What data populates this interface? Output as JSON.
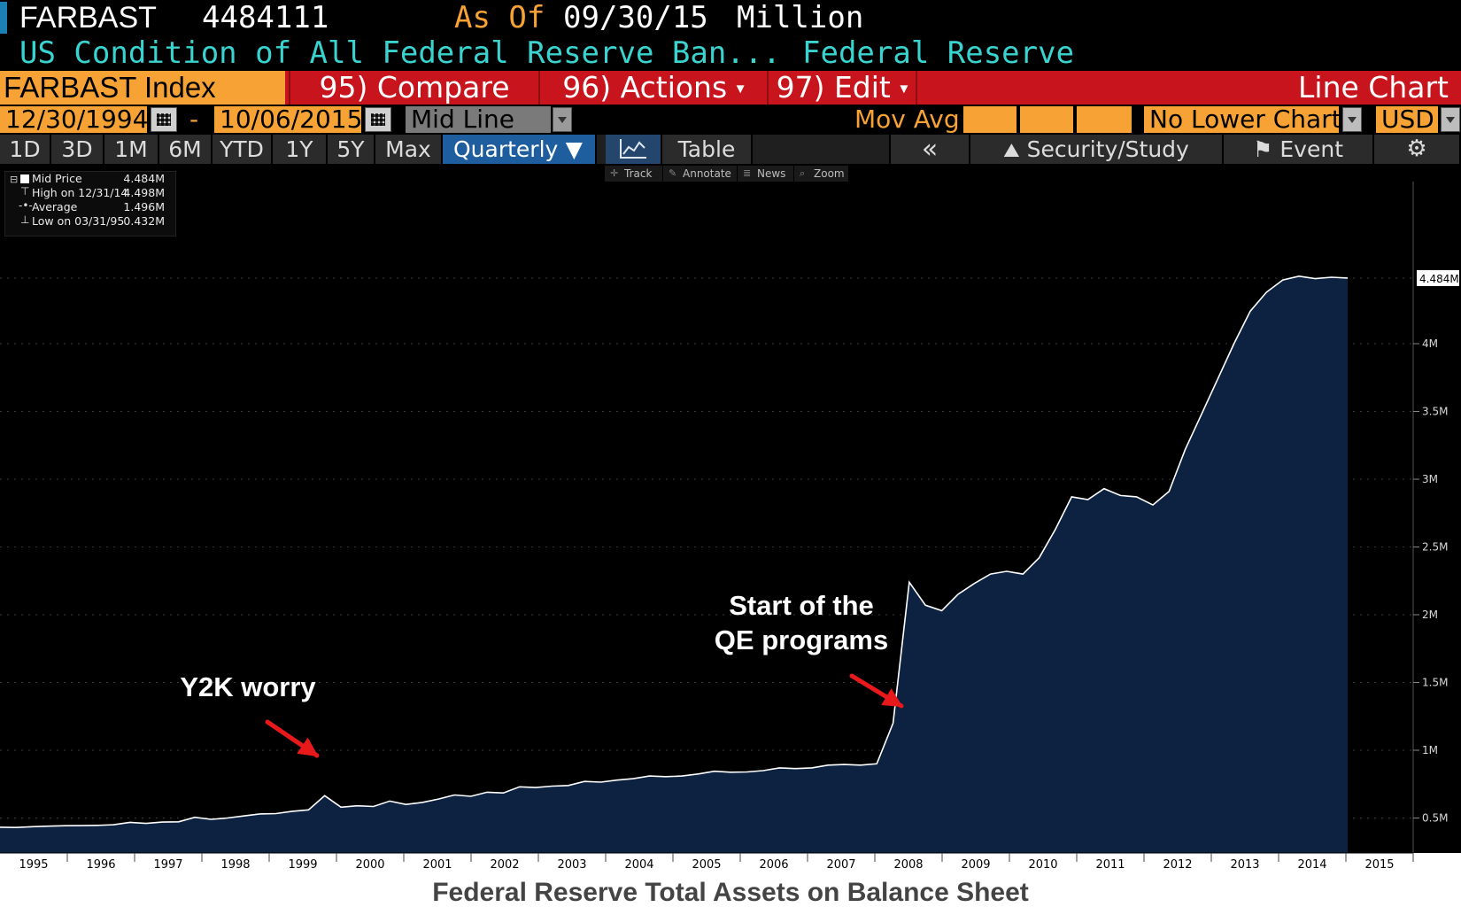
{
  "header": {
    "ticker": "FARBAST",
    "last_value": "4484111",
    "as_of_label": "As Of",
    "as_of_date": "09/30/15",
    "units": "Million",
    "description": "US Condition of All Federal Reserve Ban...",
    "source": "Federal Reserve"
  },
  "toolbar": {
    "security": "FARBAST Index",
    "compare": "95) Compare",
    "actions": "96) Actions",
    "edit": "97) Edit",
    "chart_type": "Line Chart"
  },
  "range": {
    "start": "12/30/1994",
    "dash": "-",
    "end": "10/06/2015",
    "field": "Mid Line",
    "mov_avg_label": "Mov Avg",
    "lower_chart": "No Lower Chart",
    "currency": "USD"
  },
  "periods": [
    "1D",
    "3D",
    "1M",
    "6M",
    "YTD",
    "1Y",
    "5Y",
    "Max"
  ],
  "frequency": "Quarterly",
  "view": {
    "table": "Table",
    "collapse": "«",
    "security_study": "Security/Study",
    "event": "Event"
  },
  "tools": [
    "Track",
    "Annotate",
    "News",
    "Zoom"
  ],
  "legend": [
    {
      "label": "Mid Price",
      "value": "4.484M"
    },
    {
      "label": "High on 12/31/14",
      "value": "4.498M"
    },
    {
      "label": "Average",
      "value": "1.496M"
    },
    {
      "label": "Low on 03/31/95",
      "value": "0.432M"
    }
  ],
  "annotations": {
    "y2k": "Y2K worry",
    "qe_line1": "Start of the",
    "qe_line2": "QE programs"
  },
  "footer_title": "Federal Reserve Total Assets on Balance Sheet",
  "colors": {
    "background": "#000000",
    "area_fill": "#0d2240",
    "line": "#ffffff",
    "accent_orange": "#f7a234",
    "accent_red": "#c8141c",
    "accent_cyan": "#39d3d0",
    "arrow": "#e8191a"
  },
  "chart_data": {
    "type": "area",
    "x_unit": "year",
    "y_unit": "M",
    "last_label": "4.484M",
    "ylim": [
      0,
      5.0
    ],
    "yticks": [
      0.5,
      1,
      1.5,
      2,
      2.5,
      3,
      3.5,
      4
    ],
    "ytick_labels": [
      "0.5M",
      "1M",
      "1.5M",
      "2M",
      "2.5M",
      "3M",
      "3.5M",
      "4M"
    ],
    "xlim": [
      1995,
      2016
    ],
    "xtick_labels": [
      "1995",
      "1996",
      "1997",
      "1998",
      "1999",
      "2000",
      "2001",
      "2002",
      "2003",
      "2004",
      "2005",
      "2006",
      "2007",
      "2008",
      "2009",
      "2010",
      "2011",
      "2012",
      "2013",
      "2014",
      "2015"
    ],
    "series": [
      {
        "points": [
          [
            1995.0,
            0.432
          ],
          [
            1995.25,
            0.43
          ],
          [
            1995.5,
            0.436
          ],
          [
            1995.75,
            0.44
          ],
          [
            1996.0,
            0.443
          ],
          [
            1996.25,
            0.444
          ],
          [
            1996.5,
            0.446
          ],
          [
            1996.75,
            0.45
          ],
          [
            1997.0,
            0.468
          ],
          [
            1997.25,
            0.46
          ],
          [
            1997.5,
            0.47
          ],
          [
            1997.75,
            0.472
          ],
          [
            1998.0,
            0.505
          ],
          [
            1998.25,
            0.49
          ],
          [
            1998.5,
            0.5
          ],
          [
            1998.75,
            0.515
          ],
          [
            1999.0,
            0.53
          ],
          [
            1999.25,
            0.533
          ],
          [
            1999.5,
            0.55
          ],
          [
            1999.75,
            0.56
          ],
          [
            2000.0,
            0.665
          ],
          [
            2000.25,
            0.58
          ],
          [
            2000.5,
            0.59
          ],
          [
            2000.75,
            0.585
          ],
          [
            2001.0,
            0.625
          ],
          [
            2001.25,
            0.6
          ],
          [
            2001.5,
            0.615
          ],
          [
            2001.75,
            0.64
          ],
          [
            2002.0,
            0.67
          ],
          [
            2002.25,
            0.66
          ],
          [
            2002.5,
            0.69
          ],
          [
            2002.75,
            0.685
          ],
          [
            2003.0,
            0.73
          ],
          [
            2003.25,
            0.725
          ],
          [
            2003.5,
            0.735
          ],
          [
            2003.75,
            0.74
          ],
          [
            2004.0,
            0.77
          ],
          [
            2004.25,
            0.765
          ],
          [
            2004.5,
            0.78
          ],
          [
            2004.75,
            0.79
          ],
          [
            2005.0,
            0.81
          ],
          [
            2005.25,
            0.805
          ],
          [
            2005.5,
            0.81
          ],
          [
            2005.75,
            0.825
          ],
          [
            2006.0,
            0.845
          ],
          [
            2006.25,
            0.838
          ],
          [
            2006.5,
            0.84
          ],
          [
            2006.75,
            0.85
          ],
          [
            2007.0,
            0.87
          ],
          [
            2007.25,
            0.865
          ],
          [
            2007.5,
            0.87
          ],
          [
            2007.75,
            0.89
          ],
          [
            2008.0,
            0.895
          ],
          [
            2008.25,
            0.89
          ],
          [
            2008.5,
            0.9
          ],
          [
            2008.75,
            1.2
          ],
          [
            2009.0,
            2.24
          ],
          [
            2009.25,
            2.07
          ],
          [
            2009.5,
            2.03
          ],
          [
            2009.75,
            2.15
          ],
          [
            2010.0,
            2.23
          ],
          [
            2010.25,
            2.3
          ],
          [
            2010.5,
            2.32
          ],
          [
            2010.75,
            2.3
          ],
          [
            2011.0,
            2.42
          ],
          [
            2011.25,
            2.63
          ],
          [
            2011.5,
            2.87
          ],
          [
            2011.75,
            2.85
          ],
          [
            2012.0,
            2.93
          ],
          [
            2012.25,
            2.88
          ],
          [
            2012.5,
            2.87
          ],
          [
            2012.75,
            2.81
          ],
          [
            2013.0,
            2.91
          ],
          [
            2013.25,
            3.22
          ],
          [
            2013.5,
            3.48
          ],
          [
            2013.75,
            3.74
          ],
          [
            2014.0,
            4.0
          ],
          [
            2014.25,
            4.24
          ],
          [
            2014.5,
            4.38
          ],
          [
            2014.75,
            4.47
          ],
          [
            2015.0,
            4.498
          ],
          [
            2015.25,
            4.48
          ],
          [
            2015.5,
            4.49
          ],
          [
            2015.75,
            4.484
          ]
        ]
      }
    ]
  }
}
